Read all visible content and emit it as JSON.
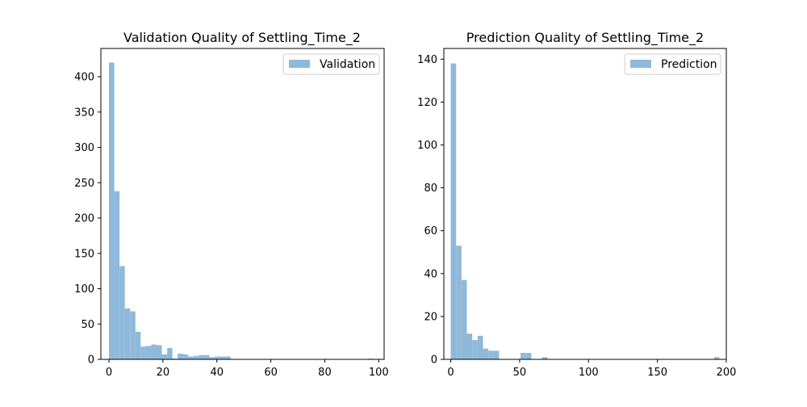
{
  "chart_data": [
    {
      "type": "bar",
      "title": "Validation Quality of Settling_Time_2",
      "xlabel": "",
      "ylabel": "",
      "xlim": [
        -3,
        102
      ],
      "ylim": [
        0,
        440
      ],
      "xticks": [
        0,
        20,
        40,
        60,
        80,
        100
      ],
      "yticks": [
        0,
        50,
        100,
        150,
        200,
        250,
        300,
        350,
        400
      ],
      "bin_start": 0.0,
      "bin_width": 1.96,
      "series": [
        {
          "name": "Validation",
          "values": [
            420,
            238,
            132,
            72,
            68,
            39,
            18,
            19,
            21,
            20,
            7,
            16,
            1,
            8,
            7,
            4,
            5,
            6,
            6,
            3,
            4,
            4,
            4,
            0,
            0,
            0,
            0,
            0,
            0,
            0,
            0,
            0,
            0,
            0,
            0,
            0,
            0,
            0,
            0,
            0,
            0,
            0,
            0,
            0,
            0,
            0,
            0,
            0,
            0,
            1
          ]
        }
      ],
      "color": "#8fb9da",
      "grid": false,
      "legend": "top-right"
    },
    {
      "type": "bar",
      "title": "Prediction Quality of Settling_Time_2",
      "xlabel": "",
      "ylabel": "",
      "xlim": [
        -5,
        200
      ],
      "ylim": [
        0,
        145
      ],
      "xticks": [
        0,
        50,
        100,
        150,
        200
      ],
      "yticks": [
        0,
        20,
        40,
        60,
        80,
        100,
        120,
        140
      ],
      "bin_start": 0.0,
      "bin_width": 3.9,
      "series": [
        {
          "name": "Prediction",
          "values": [
            138,
            53,
            37,
            12,
            9,
            11,
            5,
            4,
            4,
            0,
            0,
            0,
            0,
            3,
            3,
            0,
            0,
            1,
            0,
            0,
            0,
            0,
            0,
            0,
            0,
            0,
            0,
            0,
            0,
            0,
            0,
            0,
            0,
            0,
            0,
            0,
            0,
            0,
            0,
            0,
            0,
            0,
            0,
            0,
            0,
            0,
            0,
            0,
            0,
            1
          ]
        }
      ],
      "color": "#8fb9da",
      "grid": false,
      "legend": "top-right"
    }
  ]
}
